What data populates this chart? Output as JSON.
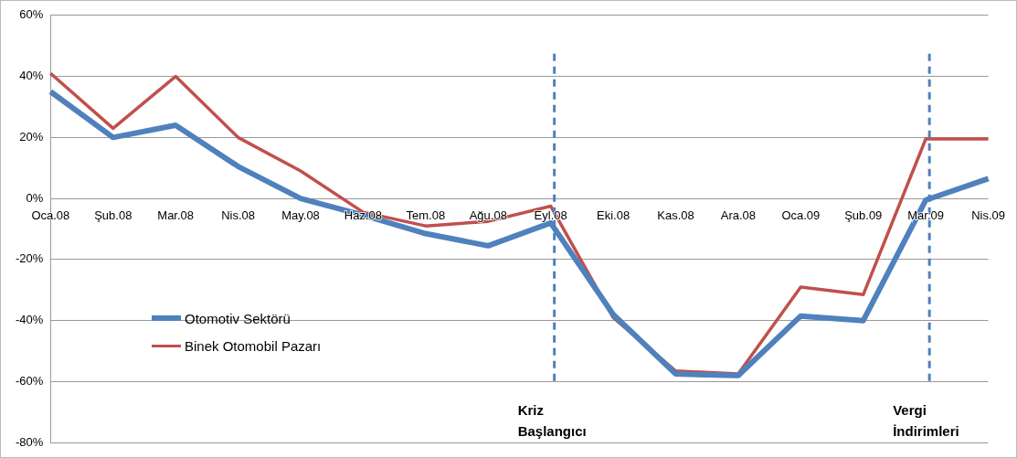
{
  "chart_data": {
    "type": "line",
    "categories": [
      "Oca.08",
      "Şub.08",
      "Mar.08",
      "Nis.08",
      "May.08",
      "Haz.08",
      "Tem.08",
      "Ağu.08",
      "Eyl.08",
      "Eki.08",
      "Kas.08",
      "Ara.08",
      "Oca.09",
      "Şub.09",
      "Mar.09",
      "Nis.09"
    ],
    "series": [
      {
        "name": "Otomotiv Sektörü",
        "color": "#4f81bd",
        "values": [
          35,
          20,
          24,
          10.5,
          0,
          -5.5,
          -11.5,
          -15.5,
          -8,
          -38,
          -57.5,
          -58,
          -38.5,
          -40,
          -0.5,
          6.5
        ]
      },
      {
        "name": "Binek Otomobil Pazarı",
        "color": "#c0504d",
        "values": [
          41,
          23,
          40,
          20,
          9,
          -4.5,
          -9,
          -7.5,
          -2.5,
          -39,
          -56.5,
          -57.5,
          -29,
          -31.5,
          19.5,
          19.5
        ]
      }
    ],
    "ylim": [
      -80,
      60
    ],
    "yticks": [
      {
        "value": -80,
        "label": "-80%"
      },
      {
        "value": -60,
        "label": "-60%"
      },
      {
        "value": -40,
        "label": "-40%"
      },
      {
        "value": -20,
        "label": "-20%"
      },
      {
        "value": 0,
        "label": "0%"
      },
      {
        "value": 20,
        "label": "20%"
      },
      {
        "value": 40,
        "label": "40%"
      },
      {
        "value": 60,
        "label": "60%"
      }
    ],
    "grid": "y",
    "legend": "left",
    "marker": "none",
    "line_style": "solid",
    "ref_lines": [
      {
        "axis": "x",
        "value": "Eyl.08",
        "label": "Kriz\nBaşlangıcı",
        "color": "#4f81bd",
        "line_style": "dashed"
      },
      {
        "axis": "x",
        "value": "Mar.09",
        "label": "Vergi\nİndirimleri",
        "color": "#4f81bd",
        "line_style": "dashed"
      }
    ]
  }
}
